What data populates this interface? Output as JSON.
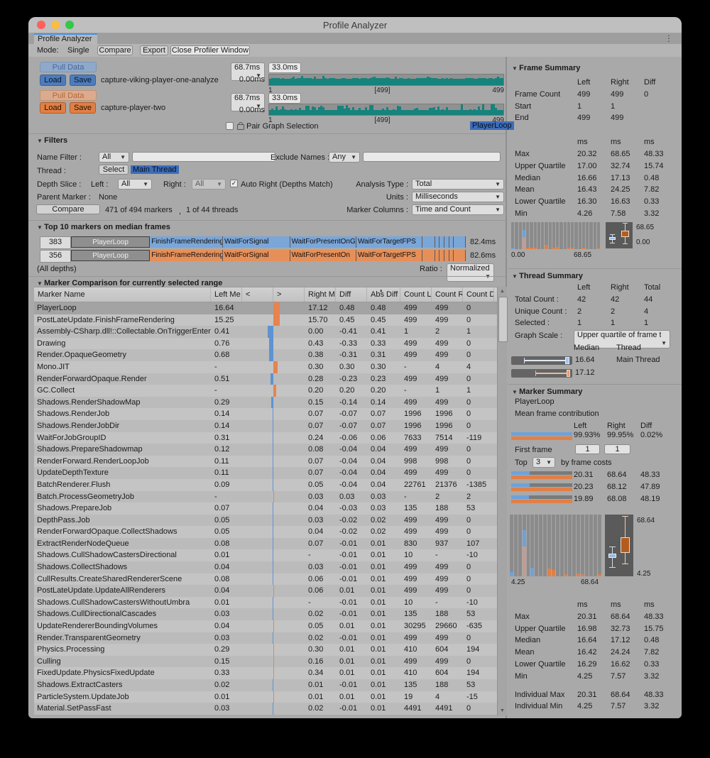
{
  "window": {
    "title": "Profile Analyzer",
    "tab": "Profile Analyzer",
    "menu_icon": "⋮"
  },
  "toolbar": {
    "mode_label": "Mode:",
    "single": "Single",
    "compare": "Compare",
    "export": "Export",
    "close": "Close Profiler Window"
  },
  "datasets": [
    {
      "pull": "Pull Data",
      "load": "Load",
      "save": "Save",
      "name": "capture-viking-player-one-analyze",
      "range": "68.7ms",
      "threshold": "33.0ms",
      "baseline": "0.00ms",
      "axis_start": "1",
      "axis_mid": "[499]",
      "axis_end": "499"
    },
    {
      "pull": "Pull Data",
      "load": "Load",
      "save": "Save",
      "name": "capture-player-two",
      "range": "68.7ms",
      "threshold": "33.0ms",
      "baseline": "0.00ms",
      "axis_start": "1",
      "axis_mid": "[499]",
      "axis_end": "499"
    }
  ],
  "pair": {
    "label": "Pair Graph Selection",
    "selected_marker": "PlayerLoop"
  },
  "filters": {
    "title": "Filters",
    "name_filter_label": "Name Filter :",
    "name_filter_mode": "All",
    "exclude_label": "Exclude Names :",
    "exclude_mode": "Any",
    "thread_label": "Thread :",
    "thread_button": "Select",
    "thread_value": "Main Thread",
    "depth_label": "Depth Slice :",
    "left_label": "Left :",
    "left_value": "All",
    "right_label": "Right :",
    "right_value": "All",
    "auto_right_label": "Auto Right (Depths Match)",
    "analysis_label": "Analysis Type :",
    "analysis_value": "Total",
    "parent_label": "Parent Marker :",
    "parent_value": "None",
    "units_label": "Units :",
    "units_value": "Milliseconds",
    "compare_button": "Compare",
    "markers_count": "471 of 494 markers",
    "comma": ",",
    "threads_count": "1 of 44 threads",
    "columns_label": "Marker Columns :",
    "columns_value": "Time and Count"
  },
  "top10": {
    "title": "Top 10 markers on median frames",
    "rows": [
      {
        "frame": "383",
        "total": "82.4ms",
        "color": "#7ba6d8",
        "segments": [
          {
            "label": "PlayerLoop",
            "w": 20,
            "head": true
          },
          {
            "label": "FinishFrameRendering",
            "w": 18.5
          },
          {
            "label": "WaitForSignal",
            "w": 17
          },
          {
            "label": "WaitForPresentOnG",
            "w": 16.8
          },
          {
            "label": "WaitForTargetFPS",
            "w": 16.7
          },
          {
            "label": "",
            "w": 3.2
          },
          {
            "label": "",
            "w": 1.2
          },
          {
            "label": "",
            "w": 1.2
          },
          {
            "label": "",
            "w": 1.2
          },
          {
            "label": "",
            "w": 1.2
          },
          {
            "label": "",
            "w": 3.0
          }
        ]
      },
      {
        "frame": "356",
        "total": "82.6ms",
        "color": "#e78f58",
        "segments": [
          {
            "label": "PlayerLoop",
            "w": 20,
            "head": true
          },
          {
            "label": "FinishFrameRendering",
            "w": 18.5
          },
          {
            "label": "WaitForSignal",
            "w": 17
          },
          {
            "label": "WaitForPresentOn",
            "w": 16.8
          },
          {
            "label": "WaitForTargetFPS",
            "w": 16.7
          },
          {
            "label": "",
            "w": 3.2
          },
          {
            "label": "",
            "w": 1.2
          },
          {
            "label": "",
            "w": 1.2
          },
          {
            "label": "",
            "w": 1.2
          },
          {
            "label": "",
            "w": 1.2
          },
          {
            "label": "",
            "w": 3.0
          }
        ]
      }
    ],
    "all_depths": "(All depths)",
    "ratio_label": "Ratio :",
    "ratio_value": "Normalized"
  },
  "comparison": {
    "title": "Marker Comparison for currently selected range",
    "headers": [
      "Marker Name",
      "Left Me",
      "<",
      ">",
      "Right M",
      "Diff",
      "Abs Diff",
      "Count L",
      "Count R",
      "Count D"
    ],
    "sorted_column": "Abs Diff",
    "rows": [
      [
        "PlayerLoop",
        "16.64",
        "17.12",
        "0.48",
        "0.48",
        "499",
        "499",
        "0"
      ],
      [
        "PostLateUpdate.FinishFrameRendering",
        "15.25",
        "15.70",
        "0.45",
        "0.45",
        "499",
        "499",
        "0"
      ],
      [
        "Assembly-CSharp.dll!::Collectable.OnTriggerEnter()",
        "0.41",
        "0.00",
        "-0.41",
        "0.41",
        "1",
        "2",
        "1"
      ],
      [
        "Drawing",
        "0.76",
        "0.43",
        "-0.33",
        "0.33",
        "499",
        "499",
        "0"
      ],
      [
        "Render.OpaqueGeometry",
        "0.68",
        "0.38",
        "-0.31",
        "0.31",
        "499",
        "499",
        "0"
      ],
      [
        "Mono.JIT",
        "-",
        "0.30",
        "0.30",
        "0.30",
        "-",
        "4",
        "4"
      ],
      [
        "RenderForwardOpaque.Render",
        "0.51",
        "0.28",
        "-0.23",
        "0.23",
        "499",
        "499",
        "0"
      ],
      [
        "GC.Collect",
        "-",
        "0.20",
        "0.20",
        "0.20",
        "-",
        "1",
        "1"
      ],
      [
        "Shadows.RenderShadowMap",
        "0.29",
        "0.15",
        "-0.14",
        "0.14",
        "499",
        "499",
        "0"
      ],
      [
        "Shadows.RenderJob",
        "0.14",
        "0.07",
        "-0.07",
        "0.07",
        "1996",
        "1996",
        "0"
      ],
      [
        "Shadows.RenderJobDir",
        "0.14",
        "0.07",
        "-0.07",
        "0.07",
        "1996",
        "1996",
        "0"
      ],
      [
        "WaitForJobGroupID",
        "0.31",
        "0.24",
        "-0.06",
        "0.06",
        "7633",
        "7514",
        "-119"
      ],
      [
        "Shadows.PrepareShadowmap",
        "0.12",
        "0.08",
        "-0.04",
        "0.04",
        "499",
        "499",
        "0"
      ],
      [
        "RenderForward.RenderLoopJob",
        "0.11",
        "0.07",
        "-0.04",
        "0.04",
        "998",
        "998",
        "0"
      ],
      [
        "UpdateDepthTexture",
        "0.11",
        "0.07",
        "-0.04",
        "0.04",
        "499",
        "499",
        "0"
      ],
      [
        "BatchRenderer.Flush",
        "0.09",
        "0.05",
        "-0.04",
        "0.04",
        "22761",
        "21376",
        "-1385"
      ],
      [
        "Batch.ProcessGeometryJob",
        "-",
        "0.03",
        "0.03",
        "0.03",
        "-",
        "2",
        "2"
      ],
      [
        "Shadows.PrepareJob",
        "0.07",
        "0.04",
        "-0.03",
        "0.03",
        "135",
        "188",
        "53"
      ],
      [
        "DepthPass.Job",
        "0.05",
        "0.03",
        "-0.02",
        "0.02",
        "499",
        "499",
        "0"
      ],
      [
        "RenderForwardOpaque.CollectShadows",
        "0.05",
        "0.04",
        "-0.02",
        "0.02",
        "499",
        "499",
        "0"
      ],
      [
        "ExtractRenderNodeQueue",
        "0.08",
        "0.07",
        "-0.01",
        "0.01",
        "830",
        "937",
        "107"
      ],
      [
        "Shadows.CullShadowCastersDirectional",
        "0.01",
        "-",
        "-0.01",
        "0.01",
        "10",
        "-",
        "-10"
      ],
      [
        "Shadows.CollectShadows",
        "0.04",
        "0.03",
        "-0.01",
        "0.01",
        "499",
        "499",
        "0"
      ],
      [
        "CullResults.CreateSharedRendererScene",
        "0.08",
        "0.06",
        "-0.01",
        "0.01",
        "499",
        "499",
        "0"
      ],
      [
        "PostLateUpdate.UpdateAllRenderers",
        "0.04",
        "0.06",
        "0.01",
        "0.01",
        "499",
        "499",
        "0"
      ],
      [
        "Shadows.CullShadowCastersWithoutUmbra",
        "0.01",
        "-",
        "-0.01",
        "0.01",
        "10",
        "-",
        "-10"
      ],
      [
        "Shadows.CullDirectionalCascades",
        "0.03",
        "0.02",
        "-0.01",
        "0.01",
        "135",
        "188",
        "53"
      ],
      [
        "UpdateRendererBoundingVolumes",
        "0.04",
        "0.05",
        "0.01",
        "0.01",
        "30295",
        "29660",
        "-635"
      ],
      [
        "Render.TransparentGeometry",
        "0.03",
        "0.02",
        "-0.01",
        "0.01",
        "499",
        "499",
        "0"
      ],
      [
        "Physics.Processing",
        "0.29",
        "0.30",
        "0.01",
        "0.01",
        "410",
        "604",
        "194"
      ],
      [
        "Culling",
        "0.15",
        "0.16",
        "0.01",
        "0.01",
        "499",
        "499",
        "0"
      ],
      [
        "FixedUpdate.PhysicsFixedUpdate",
        "0.33",
        "0.34",
        "0.01",
        "0.01",
        "410",
        "604",
        "194"
      ],
      [
        "Shadows.ExtractCasters",
        "0.02",
        "0.01",
        "-0.01",
        "0.01",
        "135",
        "188",
        "53"
      ],
      [
        "ParticleSystem.UpdateJob",
        "0.01",
        "0.01",
        "0.01",
        "0.01",
        "19",
        "4",
        "-15"
      ],
      [
        "Material.SetPassFast",
        "0.03",
        "0.02",
        "-0.01",
        "0.01",
        "4491",
        "4491",
        "0"
      ]
    ]
  },
  "frame_summary": {
    "title": "Frame Summary",
    "table": [
      {
        "c": [
          "",
          "Left",
          "Right",
          "Diff"
        ]
      },
      {
        "c": [
          "Frame Count",
          "499",
          "499",
          "0"
        ]
      },
      {
        "c": [
          "Start",
          "1",
          "1",
          ""
        ]
      },
      {
        "c": [
          "End",
          "499",
          "499",
          ""
        ]
      },
      {
        "spacer": 17
      },
      {
        "c": [
          "",
          "ms",
          "ms",
          "ms"
        ]
      },
      {
        "c": [
          "Max",
          "20.32",
          "68.65",
          "48.33"
        ]
      },
      {
        "c": [
          "Upper Quartile",
          "17.00",
          "32.74",
          "15.74"
        ]
      },
      {
        "c": [
          "Median",
          "16.66",
          "17.13",
          "0.48"
        ]
      },
      {
        "c": [
          "Mean",
          "16.43",
          "24.25",
          "7.82"
        ]
      },
      {
        "c": [
          "Lower Quartile",
          "16.30",
          "16.63",
          "0.33"
        ]
      },
      {
        "c": [
          "Min",
          "4.26",
          "7.58",
          "3.32"
        ]
      }
    ],
    "hist_min": "0.00",
    "hist_max": "68.65",
    "box_max": "68.65",
    "box_min": "0.00",
    "histogram": [
      {
        "b": 0.06
      },
      {},
      {},
      {
        "b": 0.72,
        "s": 0.45
      },
      {
        "o": 0.05
      },
      {
        "o": 0.04
      },
      {
        "o": 0.04
      },
      {},
      {},
      {
        "o": 0.16
      },
      {},
      {
        "o": 0.05
      },
      {
        "o": 0.07
      },
      {},
      {},
      {
        "o": 0.05
      },
      {
        "o": 0.06
      },
      {},
      {},
      {
        "o": 0.04
      },
      {},
      {},
      {},
      {
        "o": 0.05
      }
    ]
  },
  "thread_summary": {
    "title": "Thread Summary",
    "table": [
      {
        "c": [
          "",
          "Left",
          "Right",
          "Total"
        ]
      },
      {
        "c": [
          "Total Count :",
          "42",
          "42",
          "44"
        ]
      },
      {
        "c": [
          "Unique Count :",
          "2",
          "2",
          "4"
        ]
      },
      {
        "c": [
          "Selected :",
          "1",
          "1",
          "1"
        ]
      }
    ],
    "graph_scale_label": "Graph Scale :",
    "graph_scale_value": "Upper quartile of frame ti",
    "median_header": "Median",
    "thread_header": "Thread",
    "threads": [
      {
        "median": "16.64",
        "name": "Main Thread"
      },
      {
        "median": "17.12",
        "name": ""
      }
    ]
  },
  "marker_summary": {
    "title": "Marker Summary",
    "marker": "PlayerLoop",
    "subtitle": "Mean frame contribution",
    "col_headers": [
      "Left",
      "Right",
      "Diff"
    ],
    "contribution": [
      "99.93%",
      "99.95%",
      "0.02%"
    ],
    "first_frame_label": "First frame",
    "first_frame": [
      "1",
      "1"
    ],
    "top_label": "Top",
    "top_value": "3",
    "top_suffix": "by frame costs",
    "top_rows": [
      {
        "l": "20.31",
        "r": "68.64",
        "d": "48.33",
        "frac": 0.3
      },
      {
        "l": "20.23",
        "r": "68.12",
        "d": "47.89",
        "frac": 0.3
      },
      {
        "l": "19.89",
        "r": "68.08",
        "d": "48.19",
        "frac": 0.29
      }
    ],
    "hist_min": "4.25",
    "hist_max": "68.64",
    "box_max": "68.64",
    "box_min": "4.25",
    "histogram": [
      {
        "b": 0.07
      },
      {},
      {},
      {
        "b": 0.75,
        "s": 0.48
      },
      {},
      {
        "b": 0.14
      },
      {},
      {},
      {},
      {
        "o": 0.13
      },
      {
        "o": 0.1
      },
      {},
      {},
      {
        "o": 0.04
      },
      {},
      {},
      {
        "o": 0.05
      },
      {
        "o": 0.03
      },
      {},
      {},
      {},
      {
        "o": 0.04
      }
    ],
    "table": [
      {
        "c": [
          "",
          "ms",
          "ms",
          "ms"
        ]
      },
      {
        "c": [
          "Max",
          "20.31",
          "68.64",
          "48.33"
        ]
      },
      {
        "c": [
          "Upper Quartile",
          "16.98",
          "32.73",
          "15.75"
        ]
      },
      {
        "c": [
          "Median",
          "16.64",
          "17.12",
          "0.48"
        ]
      },
      {
        "c": [
          "Mean",
          "16.42",
          "24.24",
          "7.82"
        ]
      },
      {
        "c": [
          "Lower Quartile",
          "16.29",
          "16.62",
          "0.33"
        ]
      },
      {
        "c": [
          "Min",
          "4.25",
          "7.57",
          "3.32"
        ]
      },
      {
        "spacer": 9
      },
      {
        "c": [
          "Individual Max",
          "20.31",
          "68.64",
          "48.33"
        ]
      },
      {
        "c": [
          "Individual Min",
          "4.25",
          "7.57",
          "3.32"
        ]
      }
    ]
  },
  "colors": {
    "traffic_red": "#ff605c",
    "traffic_yellow": "#fdbc40",
    "traffic_green": "#34c749",
    "blue_accent": "#4d7cbb",
    "orange_accent": "#e07f45",
    "teal": "#16837d",
    "highlight_blue": "#3e6db8",
    "bar_blue": "#5d93d2",
    "bar_orange": "#e8834e",
    "hist_blue": "#6fa1d9",
    "hist_salmon": "#d49a84",
    "hist_orange": "#e08048"
  }
}
